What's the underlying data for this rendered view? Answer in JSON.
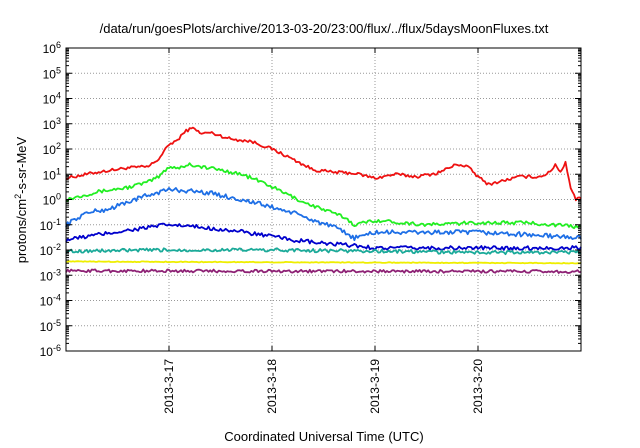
{
  "chart_data": {
    "type": "line",
    "title": "/data/run/goesPlots/archive/2013-03-20/23:00/flux/../flux/5daysMoonFluxes.txt",
    "xlabel": "Coordinated Universal Time (UTC)",
    "ylabel": {
      "prefix": "protons/cm",
      "superscript": "2",
      "suffix": "-s-sr-MeV"
    },
    "x_unit": "days since 2013-03-16",
    "xlim": [
      0,
      5
    ],
    "x_ticks": [
      {
        "x": 1,
        "label": "2013-3-17"
      },
      {
        "x": 2,
        "label": "2013-3-18"
      },
      {
        "x": 3,
        "label": "2013-3-19"
      },
      {
        "x": 4,
        "label": "2013-3-20"
      }
    ],
    "y_scale": "log",
    "ylim_exp": [
      -6,
      6
    ],
    "y_ticks": [
      {
        "exp": 6,
        "base": "10",
        "sup": "6"
      },
      {
        "exp": 5,
        "base": "10",
        "sup": "5"
      },
      {
        "exp": 4,
        "base": "10",
        "sup": "4"
      },
      {
        "exp": 3,
        "base": "10",
        "sup": "3"
      },
      {
        "exp": 2,
        "base": "10",
        "sup": "2"
      },
      {
        "exp": 1,
        "base": "10",
        "sup": "1"
      },
      {
        "exp": 0,
        "base": "10",
        "sup": "0"
      },
      {
        "exp": -1,
        "base": "10",
        "sup": "-1"
      },
      {
        "exp": -2,
        "base": "10",
        "sup": "-2"
      },
      {
        "exp": -3,
        "base": "10",
        "sup": "-3"
      },
      {
        "exp": -4,
        "base": "10",
        "sup": "-4"
      },
      {
        "exp": -5,
        "base": "10",
        "sup": "-5"
      },
      {
        "exp": -6,
        "base": "10",
        "sup": "-6"
      }
    ],
    "grid": true,
    "series": [
      {
        "color": "#ee1111",
        "jitter": 0.06,
        "x": [
          0,
          0.3,
          0.6,
          0.8,
          0.9,
          1.0,
          1.1,
          1.15,
          1.25,
          1.3,
          1.4,
          1.6,
          1.8,
          2.0,
          2.2,
          2.4,
          2.6,
          2.8,
          3.0,
          3.2,
          3.4,
          3.6,
          3.8,
          3.9,
          4.0,
          4.1,
          4.2,
          4.4,
          4.6,
          4.7,
          4.75,
          4.8,
          4.85,
          4.9,
          4.95,
          5.0
        ],
        "y": [
          7,
          12,
          18,
          20,
          40,
          150,
          250,
          500,
          700,
          400,
          450,
          250,
          200,
          100,
          40,
          15,
          12,
          11,
          7,
          10,
          8,
          11,
          25,
          20,
          8,
          4,
          5,
          8,
          8,
          12,
          25,
          12,
          30,
          3,
          1,
          1.2
        ]
      },
      {
        "color": "#22ee22",
        "jitter": 0.07,
        "x": [
          0,
          0.3,
          0.6,
          0.8,
          0.9,
          1.0,
          1.1,
          1.2,
          1.3,
          1.5,
          1.7,
          1.9,
          2.1,
          2.3,
          2.5,
          2.7,
          2.8,
          3.0,
          3.5,
          4.0,
          4.5,
          5.0
        ],
        "y": [
          1,
          2,
          3,
          5,
          8,
          20,
          18,
          25,
          20,
          15,
          10,
          5,
          2,
          0.8,
          0.4,
          0.2,
          0.1,
          0.15,
          0.1,
          0.12,
          0.12,
          0.08
        ]
      },
      {
        "color": "#1e6fe6",
        "jitter": 0.09,
        "x": [
          0,
          0.2,
          0.4,
          0.6,
          0.8,
          1.0,
          1.2,
          1.4,
          1.6,
          1.8,
          2.0,
          2.2,
          2.4,
          2.6,
          2.7,
          2.8,
          3.0,
          3.5,
          4.0,
          4.5,
          5.0
        ],
        "y": [
          0.1,
          0.3,
          0.4,
          0.8,
          1.5,
          2.5,
          2.2,
          1.8,
          1.2,
          0.8,
          0.5,
          0.3,
          0.15,
          0.08,
          0.05,
          0.03,
          0.05,
          0.05,
          0.05,
          0.04,
          0.03
        ]
      },
      {
        "color": "#0000cc",
        "jitter": 0.08,
        "x": [
          0,
          0.3,
          0.6,
          0.9,
          1.0,
          1.3,
          1.6,
          1.9,
          2.2,
          2.5,
          2.8,
          3.0,
          3.5,
          4.0,
          4.5,
          5.0
        ],
        "y": [
          0.025,
          0.04,
          0.06,
          0.09,
          0.1,
          0.08,
          0.06,
          0.04,
          0.025,
          0.018,
          0.015,
          0.012,
          0.012,
          0.012,
          0.012,
          0.012
        ]
      },
      {
        "color": "#1aaa99",
        "jitter": 0.07,
        "x": [
          0,
          1,
          2,
          3,
          4,
          5
        ],
        "y": [
          0.009,
          0.01,
          0.01,
          0.009,
          0.008,
          0.008
        ]
      },
      {
        "color": "#eeee00",
        "jitter": 0.015,
        "x": [
          0,
          5
        ],
        "y": [
          0.0035,
          0.003
        ]
      },
      {
        "color": "#8e2275",
        "jitter": 0.06,
        "x": [
          0,
          5
        ],
        "y": [
          0.0015,
          0.0014
        ]
      }
    ]
  }
}
